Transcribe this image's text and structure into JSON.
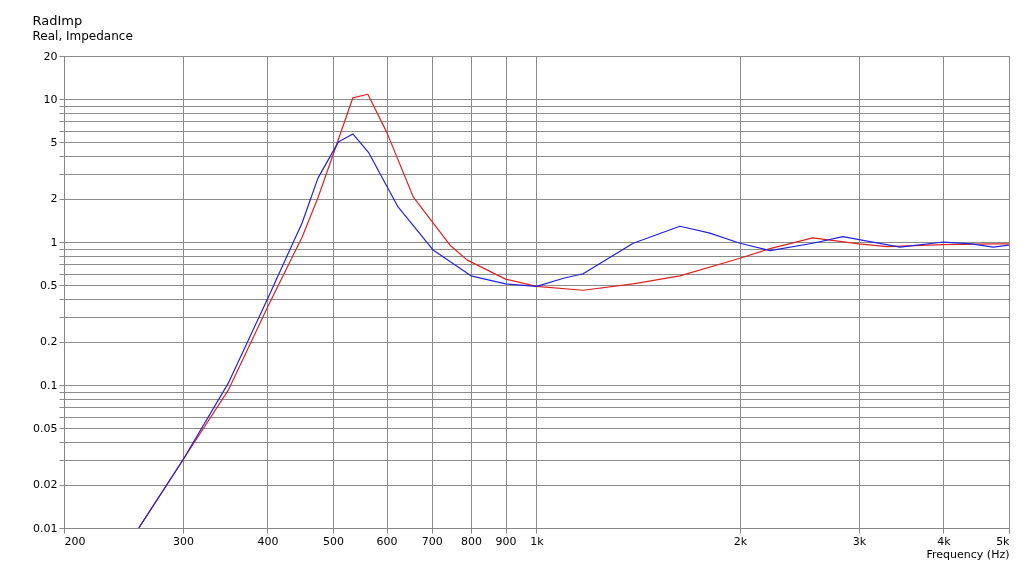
{
  "chart_data": {
    "type": "line",
    "title": "RadImp",
    "subtitle": "Real, Impedance",
    "xlabel": "Frequency  (Hz)",
    "log": "xy",
    "grid": true,
    "xlim": [
      200,
      5000
    ],
    "xticks": [
      200,
      300,
      400,
      500,
      600,
      700,
      800,
      900,
      {
        "value": 1000,
        "label": "1k"
      },
      {
        "value": 2000,
        "label": "2k"
      },
      {
        "value": 3000,
        "label": "3k"
      },
      {
        "value": 4000,
        "label": "4k"
      },
      {
        "value": 5000,
        "label": "5k"
      }
    ],
    "ylim": [
      0.01,
      20
    ],
    "yticks": [
      0.01,
      0.02,
      {
        "value": 0.03,
        "label": null
      },
      {
        "value": 0.04,
        "label": null
      },
      0.05,
      {
        "value": 0.06,
        "label": null
      },
      {
        "value": 0.07,
        "label": null
      },
      {
        "value": 0.08,
        "label": null
      },
      {
        "value": 0.09,
        "label": null
      },
      0.1,
      0.2,
      {
        "value": 0.3,
        "label": null
      },
      {
        "value": 0.4,
        "label": null
      },
      0.5,
      {
        "value": 0.6,
        "label": null
      },
      {
        "value": 0.7,
        "label": null
      },
      {
        "value": 0.8,
        "label": null
      },
      {
        "value": 0.9,
        "label": null
      },
      1,
      2,
      {
        "value": 3,
        "label": null
      },
      {
        "value": 4,
        "label": null
      },
      5,
      {
        "value": 6,
        "label": null
      },
      {
        "value": 7,
        "label": null
      },
      {
        "value": 8,
        "label": null
      },
      {
        "value": 9,
        "label": null
      },
      10,
      20
    ],
    "series": [
      {
        "color": "#dd2222",
        "x": [
          258,
          300,
          350,
          400,
          450,
          475,
          500,
          535,
          563,
          601,
          657,
          745,
          789,
          900,
          1000,
          1172,
          1390,
          1630,
          2000,
          2216,
          2563,
          3000,
          3300,
          4000,
          4740,
          5000
        ],
        "values": [
          0.01,
          0.03,
          0.092,
          0.35,
          1.08,
          2.04,
          4.06,
          10.2,
          10.8,
          5.8,
          2.07,
          0.95,
          0.75,
          0.55,
          0.49,
          0.46,
          0.51,
          0.58,
          0.77,
          0.9,
          1.07,
          0.97,
          0.93,
          0.96,
          0.97,
          0.97
        ]
      },
      {
        "color": "#2222dd",
        "x": [
          258,
          300,
          350,
          400,
          450,
          475,
          509,
          535,
          565,
          624,
          703,
          800,
          900,
          1000,
          1100,
          1172,
          1390,
          1630,
          1800,
          2000,
          2216,
          2563,
          2840,
          3000,
          3450,
          4000,
          4400,
          4740,
          5000
        ],
        "values": [
          0.01,
          0.03,
          0.103,
          0.4,
          1.36,
          2.8,
          5.0,
          5.7,
          4.2,
          1.76,
          0.88,
          0.58,
          0.51,
          0.49,
          0.56,
          0.6,
          0.98,
          1.29,
          1.16,
          0.98,
          0.87,
          0.98,
          1.09,
          1.04,
          0.92,
          1.0,
          0.97,
          0.92,
          0.95
        ]
      }
    ]
  }
}
